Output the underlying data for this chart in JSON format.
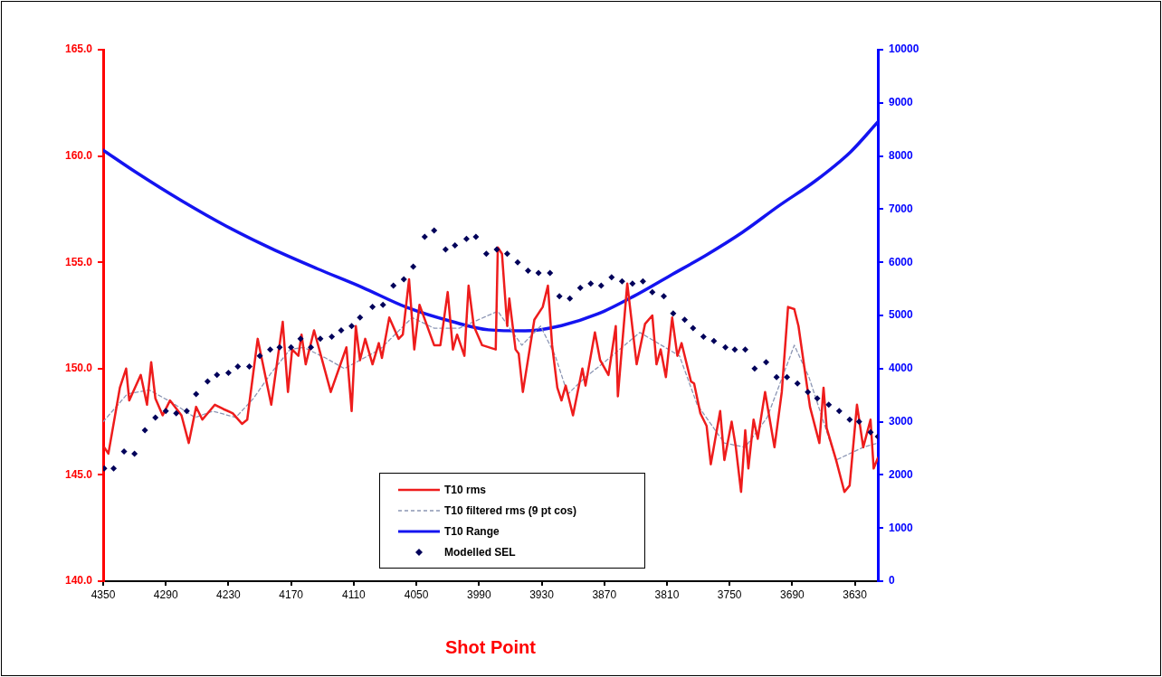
{
  "chart_data": {
    "type": "line",
    "xlabel": "Shot Point",
    "xlim": [
      4350,
      3608
    ],
    "xticks": [
      4350,
      4290,
      4230,
      4170,
      4110,
      4050,
      3990,
      3930,
      3870,
      3810,
      3750,
      3690,
      3630
    ],
    "ylim": [
      140,
      165
    ],
    "yticks": [
      {
        "value": 140,
        "label": "140.0"
      },
      {
        "value": 145,
        "label": "145.0"
      },
      {
        "value": 150,
        "label": "150.0"
      },
      {
        "value": 155,
        "label": "155.0"
      },
      {
        "value": 160,
        "label": "160.0"
      },
      {
        "value": 165,
        "label": "165.0"
      }
    ],
    "y2lim": [
      0,
      10000
    ],
    "y2ticks": [
      0,
      1000,
      2000,
      3000,
      4000,
      5000,
      6000,
      7000,
      8000,
      9000,
      10000
    ],
    "grid": false,
    "legend": "bottom",
    "series": [
      {
        "name": "T10 rms",
        "type": "line",
        "color": "#ee1c1c",
        "marker": "none",
        "line_style": "solid",
        "x": [
          4349,
          4345,
          4334,
          4328,
          4325,
          4314,
          4308,
          4304,
          4300,
          4293,
          4286,
          4275,
          4268,
          4261,
          4255,
          4243,
          4235,
          4226,
          4217,
          4212,
          4202,
          4189,
          4178,
          4173,
          4169,
          4163,
          4160,
          4156,
          4148,
          4143,
          4132,
          4117,
          4112,
          4108,
          4104,
          4099,
          4092,
          4086,
          4083,
          4076,
          4067,
          4063,
          4057,
          4052,
          4047,
          4033,
          4027,
          4020,
          4015,
          4011,
          4004,
          4000,
          3995,
          3987,
          3974,
          3972,
          3968,
          3963,
          3961,
          3955,
          3952,
          3948,
          3937,
          3929,
          3924,
          3920,
          3915,
          3911,
          3907,
          3900,
          3891,
          3888,
          3879,
          3874,
          3866,
          3859,
          3857,
          3848,
          3839,
          3831,
          3824,
          3820,
          3816,
          3811,
          3805,
          3800,
          3796,
          3787,
          3784,
          3778,
          3772,
          3768,
          3759,
          3755,
          3748,
          3744,
          3739,
          3735,
          3732,
          3727,
          3723,
          3716,
          3707,
          3700,
          3694,
          3688,
          3684,
          3673,
          3664,
          3660,
          3657,
          3648,
          3640,
          3635,
          3628,
          3622,
          3615,
          3612,
          3608
        ],
        "values": [
          146.3,
          146.0,
          149.1,
          150.0,
          148.5,
          149.7,
          148.3,
          150.3,
          148.6,
          147.8,
          148.5,
          147.8,
          146.5,
          148.2,
          147.6,
          148.3,
          148.1,
          147.9,
          147.4,
          147.6,
          151.4,
          148.3,
          152.2,
          148.9,
          150.9,
          150.6,
          151.6,
          150.2,
          151.8,
          150.9,
          148.9,
          151.0,
          148.0,
          152.0,
          150.4,
          151.4,
          150.2,
          151.2,
          150.5,
          152.4,
          151.4,
          151.6,
          154.2,
          150.9,
          153.0,
          151.1,
          151.1,
          153.6,
          150.9,
          151.6,
          150.6,
          153.9,
          152.0,
          151.1,
          150.9,
          155.7,
          155.4,
          152.0,
          153.3,
          150.9,
          150.7,
          148.9,
          152.3,
          152.9,
          153.9,
          151.1,
          149.1,
          148.5,
          149.2,
          147.8,
          150.0,
          149.2,
          151.7,
          150.4,
          149.7,
          152.0,
          148.7,
          154.0,
          150.2,
          152.1,
          152.5,
          150.2,
          150.9,
          149.6,
          152.4,
          150.6,
          151.2,
          149.4,
          149.3,
          147.9,
          147.3,
          145.5,
          148.0,
          145.7,
          147.5,
          146.3,
          144.2,
          147.1,
          145.3,
          147.6,
          146.7,
          148.9,
          146.3,
          148.9,
          152.9,
          152.8,
          152.0,
          148.2,
          146.5,
          149.1,
          147.2,
          145.7,
          144.2,
          144.5,
          148.3,
          146.3,
          147.6,
          145.3,
          145.8
        ]
      },
      {
        "name": "T10 filtered rms (9 pt cos)",
        "type": "line",
        "color": "#8c96b4",
        "marker": "none",
        "line_style": "dashed",
        "x": [
          4350,
          4327,
          4306,
          4284,
          4262,
          4245,
          4223,
          4206,
          4189,
          4171,
          4158,
          4137,
          4119,
          4085,
          4054,
          4033,
          4009,
          3972,
          3949,
          3931,
          3917,
          3905,
          3888,
          3870,
          3836,
          3798,
          3781,
          3755,
          3735,
          3714,
          3688,
          3674,
          3648,
          3622,
          3608
        ],
        "values": [
          147.5,
          148.8,
          149.0,
          148.4,
          147.7,
          148.0,
          147.7,
          148.6,
          149.8,
          150.9,
          151.0,
          150.5,
          150.0,
          150.9,
          152.4,
          151.9,
          151.9,
          152.7,
          151.1,
          152.0,
          150.6,
          148.8,
          149.6,
          150.3,
          151.7,
          150.6,
          148.3,
          146.5,
          146.3,
          147.7,
          151.1,
          149.6,
          145.7,
          146.3,
          146.5
        ]
      },
      {
        "name": "T10 Range",
        "type": "line",
        "axis": "y2",
        "color": "#1414f0",
        "marker": "none",
        "line_style": "solid",
        "x": [
          4350,
          4319,
          4275,
          4232,
          4189,
          4145,
          4102,
          4059,
          4015,
          3981,
          3946,
          3911,
          3876,
          3842,
          3807,
          3772,
          3738,
          3703,
          3668,
          3634,
          3608
        ],
        "values": [
          8110,
          7700,
          7160,
          6680,
          6260,
          5880,
          5530,
          5150,
          4880,
          4730,
          4710,
          4810,
          5030,
          5360,
          5750,
          6140,
          6560,
          7060,
          7530,
          8080,
          8640
        ]
      },
      {
        "name": "Modelled SEL",
        "type": "scatter",
        "color": "#00005a",
        "marker": "diamond",
        "x": [
          4349,
          4340,
          4330,
          4320,
          4310,
          4300,
          4290,
          4280,
          4270,
          4261,
          4250,
          4241,
          4230,
          4221,
          4210,
          4200,
          4190,
          4181,
          4170,
          4161,
          4151,
          4142,
          4131,
          4122,
          4112,
          4104,
          4092,
          4082,
          4072,
          4062,
          4053,
          4042,
          4033,
          4022,
          4013,
          4002,
          3993,
          3983,
          3973,
          3963,
          3953,
          3943,
          3933,
          3922,
          3913,
          3903,
          3893,
          3883,
          3873,
          3863,
          3853,
          3843,
          3833,
          3824,
          3813,
          3804,
          3793,
          3785,
          3775,
          3765,
          3754,
          3745,
          3735,
          3726,
          3715,
          3705,
          3695,
          3685,
          3675,
          3666,
          3655,
          3645,
          3635,
          3626,
          3615,
          3608
        ],
        "values": [
          145.3,
          145.3,
          146.1,
          146.0,
          147.1,
          147.7,
          148.0,
          147.9,
          148.0,
          148.8,
          149.4,
          149.7,
          149.8,
          150.1,
          150.1,
          150.6,
          150.9,
          151.0,
          151.0,
          151.4,
          151.0,
          151.4,
          151.5,
          151.8,
          152.0,
          152.4,
          152.9,
          153.0,
          153.9,
          154.2,
          154.8,
          156.2,
          156.5,
          155.6,
          155.8,
          156.1,
          156.2,
          155.4,
          155.6,
          155.4,
          155.0,
          154.6,
          154.5,
          154.5,
          153.4,
          153.3,
          153.8,
          154.0,
          153.9,
          154.3,
          154.1,
          154.0,
          154.1,
          153.6,
          153.4,
          152.6,
          152.3,
          151.9,
          151.5,
          151.3,
          151.0,
          150.9,
          150.9,
          150.0,
          150.3,
          149.6,
          149.6,
          149.3,
          148.9,
          148.6,
          148.3,
          148.0,
          147.6,
          147.5,
          147.0,
          146.8
        ]
      }
    ]
  }
}
